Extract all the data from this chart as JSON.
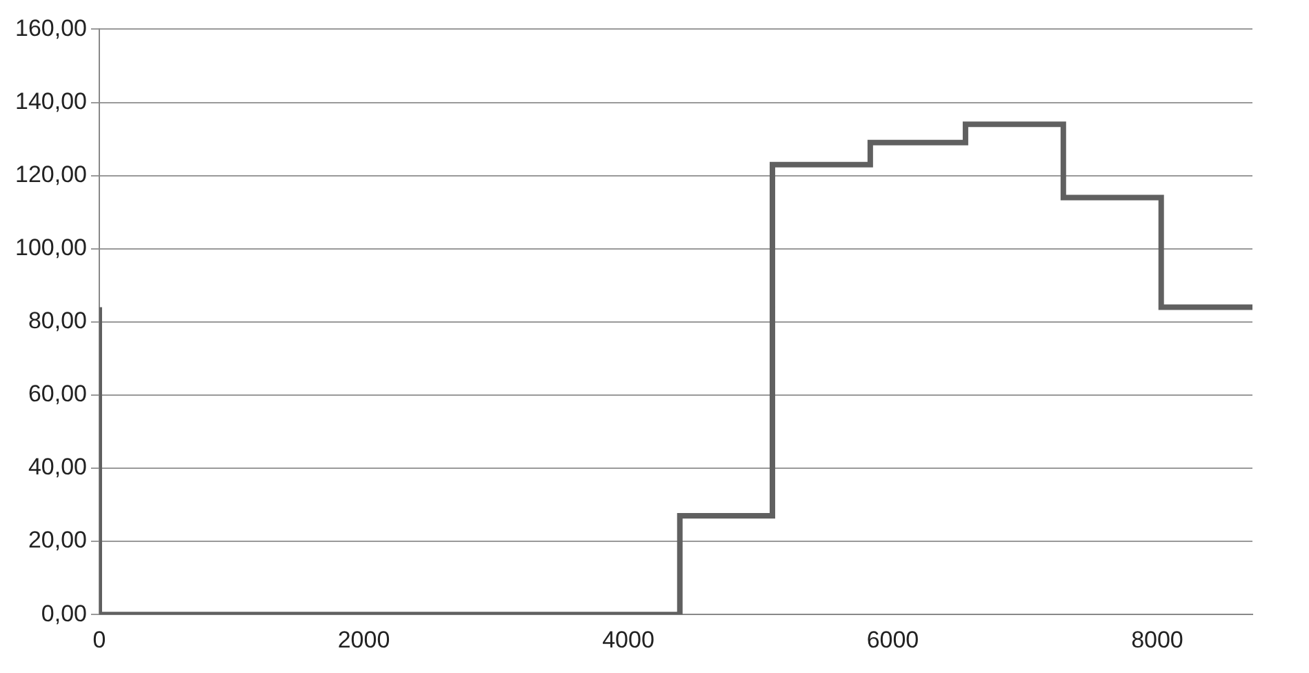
{
  "chart_data": {
    "type": "step",
    "x": [
      0,
      0,
      4390,
      5090,
      5830,
      6550,
      7290,
      8030,
      8720
    ],
    "series": [
      {
        "color": "#606060",
        "values": [
          84,
          0,
          27,
          123,
          129,
          134,
          114,
          84,
          84
        ]
      }
    ],
    "xlim": [
      0,
      8720
    ],
    "xticks": [
      0,
      2000,
      4000,
      6000,
      8000
    ],
    "ylim": [
      0,
      160
    ],
    "yticks": [
      {
        "value": 0,
        "label": "0,00"
      },
      {
        "value": 20,
        "label": "20,00"
      },
      {
        "value": 40,
        "label": "40,00"
      },
      {
        "value": 60,
        "label": "60,00"
      },
      {
        "value": 80,
        "label": "80,00"
      },
      {
        "value": 100,
        "label": "100,00"
      },
      {
        "value": 120,
        "label": "120,00"
      },
      {
        "value": 140,
        "label": "140,00"
      },
      {
        "value": 160,
        "label": "160,00"
      }
    ],
    "grid": "y",
    "legend": false,
    "marker": "none",
    "line_style": "solid"
  }
}
